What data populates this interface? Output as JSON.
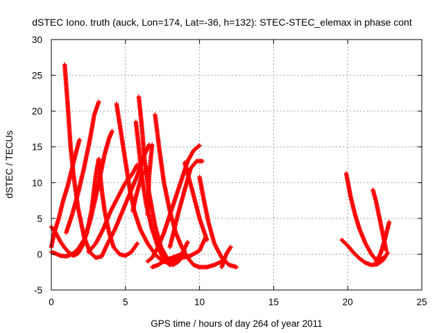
{
  "chart_data": {
    "type": "scatter",
    "title": "dSTEC Iono. truth (auck, Lon=174, Lat=-36, h=132): STEC-STEC_elemax in phase cont",
    "xlabel": "GPS time / hours of day 264 of year 2011",
    "ylabel": "dSTEC  / TECUs",
    "xlim": [
      0,
      25
    ],
    "ylim": [
      -5,
      30
    ],
    "xticks": [
      0,
      5,
      10,
      15,
      20,
      25
    ],
    "yticks": [
      -5,
      0,
      5,
      10,
      15,
      20,
      25,
      30
    ],
    "grid": true,
    "marker": "plus",
    "color": "#ff0000",
    "series": [
      {
        "x": [
          0.0,
          0.3,
          0.6,
          0.9,
          1.2,
          1.5,
          1.8,
          2.1,
          2.4,
          2.7,
          3.0,
          3.2
        ],
        "y": [
          3.8,
          3.0,
          1.8,
          0.9,
          0.2,
          -0.2,
          0.1,
          1.2,
          3.0,
          6.0,
          11.0,
          13.3
        ]
      },
      {
        "x": [
          0.0,
          0.3,
          0.6,
          1.0,
          1.4,
          1.8,
          2.2,
          2.6,
          3.0,
          3.3,
          3.6,
          3.9,
          4.1
        ],
        "y": [
          0.3,
          0.1,
          -0.2,
          -0.3,
          0.0,
          0.7,
          2.0,
          4.5,
          8.0,
          11.0,
          14.0,
          16.2,
          17.2
        ]
      },
      {
        "x": [
          0.0,
          0.2,
          0.5,
          0.8,
          1.1,
          1.4,
          1.7,
          1.9
        ],
        "y": [
          1.0,
          3.0,
          5.0,
          7.5,
          9.5,
          12.0,
          14.5,
          16.0
        ]
      },
      {
        "x": [
          0.9,
          1.1,
          1.3,
          1.5,
          1.8,
          2.2,
          2.6,
          3.0,
          3.4
        ],
        "y": [
          26.5,
          21.0,
          15.0,
          11.0,
          6.5,
          2.5,
          0.3,
          -0.5,
          -0.3
        ]
      },
      {
        "x": [
          1.0,
          1.4,
          1.8,
          2.2,
          2.6,
          2.9,
          3.2
        ],
        "y": [
          3.0,
          5.5,
          8.5,
          12.0,
          16.0,
          19.5,
          21.3
        ]
      },
      {
        "x": [
          3.2,
          3.4,
          3.6,
          3.9,
          4.2,
          4.6,
          5.0,
          5.4,
          5.8
        ],
        "y": [
          13.3,
          9.0,
          6.0,
          3.0,
          1.0,
          0.0,
          -0.2,
          0.3,
          1.5
        ]
      },
      {
        "x": [
          4.4,
          4.7,
          5.0,
          5.3,
          5.6,
          6.0,
          6.5,
          7.0,
          7.5,
          8.0,
          8.5
        ],
        "y": [
          21.0,
          17.0,
          13.0,
          9.0,
          6.0,
          3.5,
          1.5,
          0.0,
          -1.0,
          -1.2,
          -0.5
        ]
      },
      {
        "x": [
          2.5,
          3.0,
          3.5,
          4.0,
          4.5,
          5.0,
          5.4,
          5.8
        ],
        "y": [
          0.3,
          1.5,
          3.5,
          6.0,
          8.0,
          10.0,
          11.0,
          12.5
        ]
      },
      {
        "x": [
          3.4,
          3.8,
          4.3,
          4.8,
          5.3,
          5.8,
          6.2,
          6.6
        ],
        "y": [
          -0.3,
          1.5,
          3.5,
          6.0,
          8.5,
          11.0,
          13.5,
          15.3
        ]
      },
      {
        "x": [
          5.9,
          6.1,
          6.3,
          6.6,
          7.0,
          7.4,
          7.8,
          8.2,
          8.6,
          9.0
        ],
        "y": [
          22.0,
          18.0,
          13.0,
          8.5,
          4.0,
          1.0,
          -0.5,
          -1.5,
          -1.0,
          0.5
        ]
      },
      {
        "x": [
          5.7,
          5.9,
          6.1,
          6.4,
          6.8,
          7.2,
          7.6,
          8.0,
          8.4
        ],
        "y": [
          18.5,
          15.0,
          11.0,
          7.0,
          3.5,
          1.0,
          -0.8,
          -1.5,
          -1.0
        ]
      },
      {
        "x": [
          5.5,
          5.7,
          5.9,
          6.1,
          6.3,
          6.5
        ],
        "y": [
          6.0,
          8.0,
          9.5,
          11.0,
          11.5,
          12.0
        ]
      },
      {
        "x": [
          6.5,
          6.8,
          7.2,
          7.6,
          8.0,
          8.4,
          8.8,
          9.2,
          9.6,
          10.0
        ],
        "y": [
          -1.0,
          -0.5,
          1.0,
          3.0,
          5.5,
          8.0,
          10.5,
          13.0,
          14.5,
          15.2
        ]
      },
      {
        "x": [
          6.5,
          6.6,
          6.8
        ],
        "y": [
          5.5,
          11.0,
          15.3
        ]
      },
      {
        "x": [
          6.8,
          7.2,
          7.6,
          8.0,
          8.4,
          8.8,
          9.2
        ],
        "y": [
          -1.8,
          -1.5,
          -1.0,
          -0.6,
          -0.3,
          0.0,
          1.7
        ]
      },
      {
        "x": [
          7.0,
          7.3,
          7.6,
          8.0,
          8.4,
          8.8,
          9.2,
          9.6,
          10.0,
          10.5,
          11.0,
          11.5
        ],
        "y": [
          19.5,
          14.5,
          10.0,
          6.0,
          3.0,
          1.0,
          -0.5,
          -1.5,
          -1.8,
          -1.8,
          -1.5,
          -1.0
        ]
      },
      {
        "x": [
          8.0,
          8.3,
          8.6,
          9.0,
          9.4,
          9.8,
          10.2
        ],
        "y": [
          1.0,
          3.5,
          6.0,
          9.0,
          12.0,
          13.0,
          13.0
        ]
      },
      {
        "x": [
          9.0,
          9.5,
          10.0,
          10.5
        ],
        "y": [
          12.8,
          9.0,
          5.0,
          2.0
        ]
      },
      {
        "x": [
          8.2,
          8.8,
          9.4,
          10.0,
          10.4
        ],
        "y": [
          -0.8,
          -0.5,
          -0.2,
          0.5,
          2.3
        ]
      },
      {
        "x": [
          10.0,
          10.3,
          10.6,
          11.0,
          11.5,
          12.0,
          12.5
        ],
        "y": [
          10.8,
          7.5,
          4.5,
          1.5,
          -0.5,
          -1.5,
          -1.8
        ]
      },
      {
        "x": [
          11.5,
          11.8,
          12.1
        ],
        "y": [
          -1.8,
          0.0,
          1.0
        ]
      },
      {
        "x": [
          19.6,
          20.0,
          20.4,
          20.8,
          21.2,
          21.6,
          22.0,
          22.4,
          22.7
        ],
        "y": [
          2.0,
          1.2,
          0.2,
          -0.6,
          -1.2,
          -1.5,
          -1.4,
          -0.8,
          0.2
        ]
      },
      {
        "x": [
          19.9,
          20.2,
          20.5,
          20.8,
          21.2,
          21.6,
          22.0,
          22.4
        ],
        "y": [
          11.3,
          8.0,
          5.5,
          3.5,
          1.5,
          0.0,
          -1.0,
          -0.5
        ]
      },
      {
        "x": [
          21.7,
          21.9,
          22.1,
          22.3,
          22.6
        ],
        "y": [
          9.0,
          7.5,
          5.5,
          3.5,
          0.5
        ]
      },
      {
        "x": [
          21.9,
          22.2,
          22.5,
          22.8
        ],
        "y": [
          -1.0,
          0.0,
          2.0,
          4.5
        ]
      }
    ]
  }
}
